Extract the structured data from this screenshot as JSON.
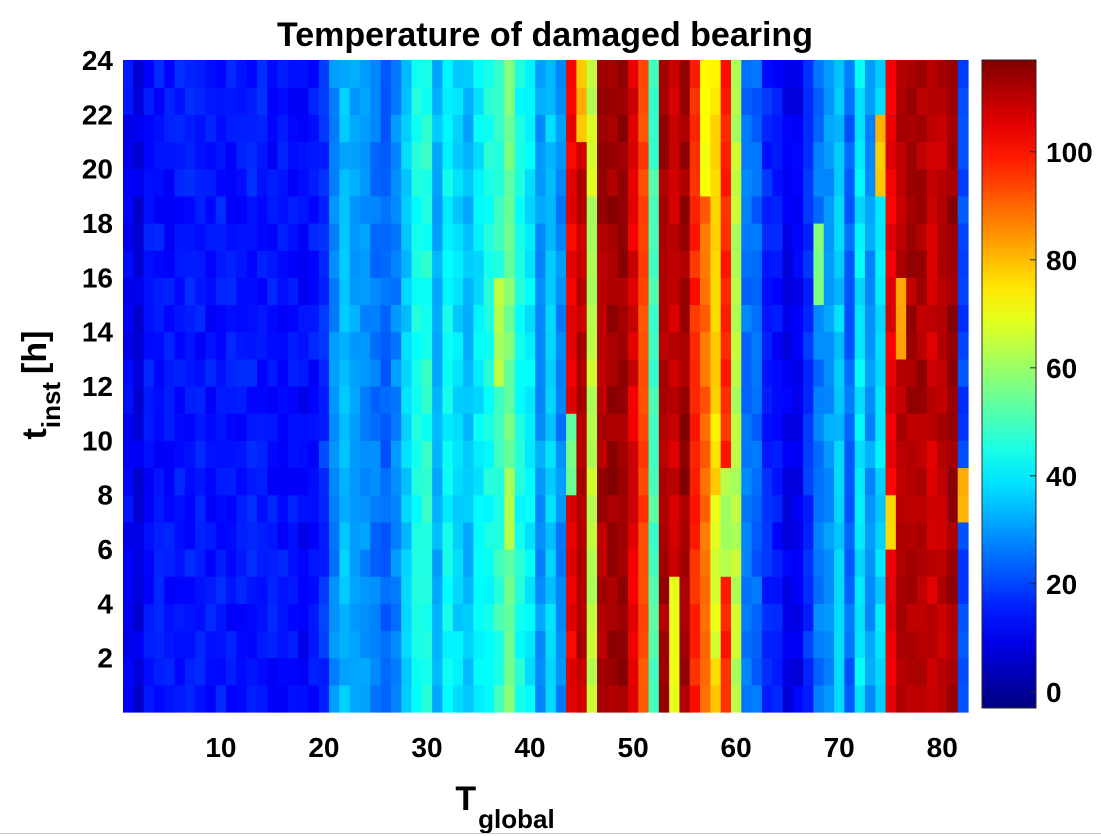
{
  "chart_data": {
    "type": "heatmap",
    "title": "Temperature of damaged bearing",
    "xlabel": {
      "main": "T",
      "subscript": "global"
    },
    "ylabel": {
      "main": "t",
      "subscript": "inst",
      "unit": "[h]"
    },
    "xlim": [
      0.5,
      82.5
    ],
    "ylim": [
      0,
      24
    ],
    "xticks": [
      10,
      20,
      30,
      40,
      50,
      60,
      70,
      80
    ],
    "yticks": [
      2,
      4,
      6,
      8,
      10,
      12,
      14,
      16,
      18,
      20,
      22,
      24
    ],
    "colormap": "jet",
    "clim": [
      -3,
      117
    ],
    "colorbar_ticks": [
      0,
      20,
      40,
      60,
      80,
      100
    ],
    "x_columns": [
      1,
      82
    ],
    "y_range": [
      0,
      24
    ],
    "column_base_values": [
      12,
      8,
      14,
      14,
      14,
      15,
      15,
      14,
      14,
      15,
      14,
      14,
      15,
      15,
      14,
      14,
      14,
      12,
      14,
      18,
      28,
      34,
      32,
      29,
      26,
      24,
      28,
      36,
      44,
      46,
      33,
      42,
      38,
      34,
      40,
      44,
      48,
      56,
      44,
      40,
      30,
      36,
      28,
      104,
      110,
      64,
      112,
      114,
      114,
      106,
      94,
      50,
      112,
      108,
      114,
      98,
      90,
      76,
      98,
      64,
      26,
      24,
      16,
      14,
      10,
      10,
      18,
      26,
      30,
      36,
      24,
      40,
      30,
      38,
      104,
      110,
      112,
      112,
      108,
      110,
      114,
      20
    ],
    "time_rows": 24,
    "notes_local_variations": [
      {
        "x": 44,
        "y_from": 8,
        "y_to": 11,
        "value": 55
      },
      {
        "x": 45,
        "y_from": 21,
        "y_to": 24,
        "value": 80
      },
      {
        "x": 46,
        "y_from": 19,
        "y_to": 22,
        "value": 68
      },
      {
        "x": 54,
        "y_from": 0,
        "y_to": 5,
        "value": 70
      },
      {
        "x": 57,
        "y_from": 19,
        "y_to": 24,
        "value": 72
      },
      {
        "x": 58,
        "y_from": 2,
        "y_to": 8,
        "value": 68
      },
      {
        "x": 59,
        "y_from": 5,
        "y_to": 9,
        "value": 62
      },
      {
        "x": 74,
        "y_from": 19,
        "y_to": 22,
        "value": 80
      },
      {
        "x": 75,
        "y_from": 6,
        "y_to": 8,
        "value": 78
      },
      {
        "x": 76,
        "y_from": 13,
        "y_to": 16,
        "value": 82
      },
      {
        "x": 82,
        "y_from": 7,
        "y_to": 9,
        "value": 80
      },
      {
        "x": 38,
        "y_from": 6,
        "y_to": 9,
        "value": 62
      },
      {
        "x": 37,
        "y_from": 12,
        "y_to": 16,
        "value": 62
      },
      {
        "x": 68,
        "y_from": 15,
        "y_to": 18,
        "value": 58
      }
    ]
  }
}
